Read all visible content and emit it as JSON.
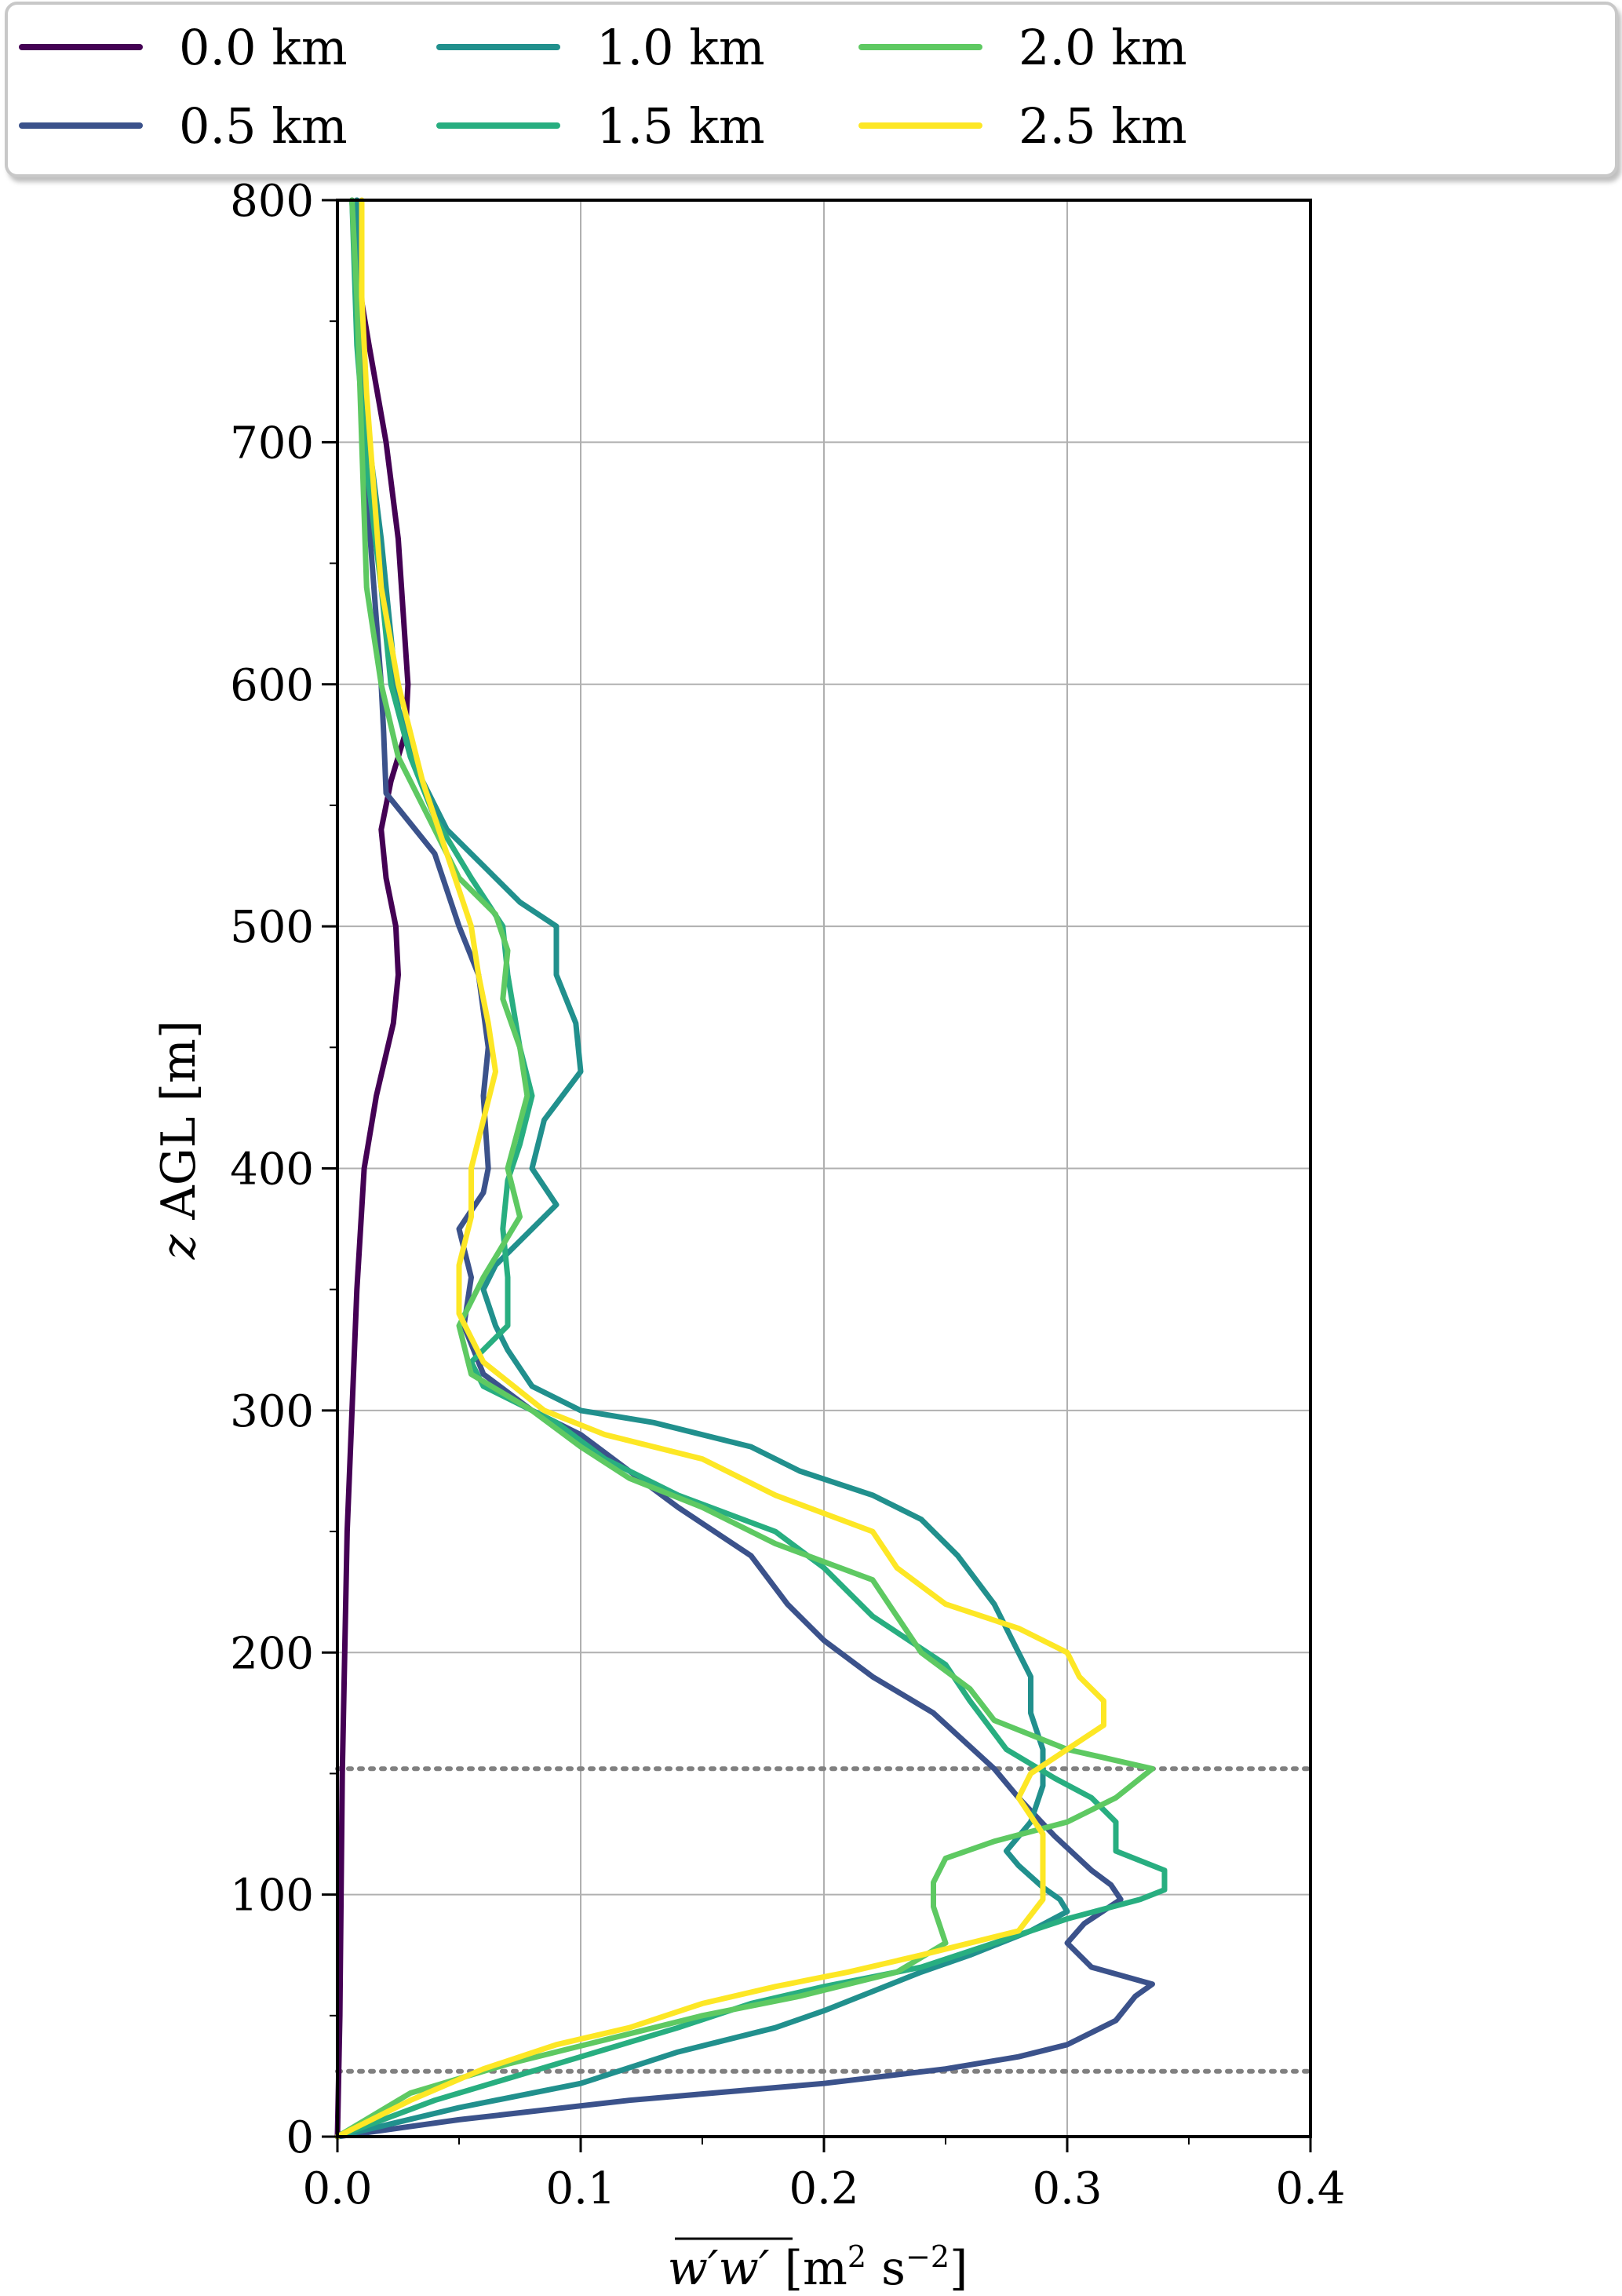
{
  "chart_data": {
    "type": "line",
    "title": "",
    "xlabel": "w′w′ [m² s⁻²]",
    "ylabel": "z AGL [m]",
    "xlim": [
      0.0,
      0.4
    ],
    "ylim": [
      0,
      800
    ],
    "xticks": [
      "0.0",
      "0.1",
      "0.2",
      "0.3",
      "0.4"
    ],
    "yticks": [
      "0",
      "100",
      "200",
      "300",
      "400",
      "500",
      "600",
      "700",
      "800"
    ],
    "grid": true,
    "legend_position": "top",
    "reference_lines": {
      "style": "dotted",
      "color": "#808080",
      "y": [
        152,
        27
      ]
    },
    "series": [
      {
        "name": "0.0 km",
        "color": "#440154",
        "points": [
          [
            0,
            0
          ],
          [
            0.001,
            50
          ],
          [
            0.002,
            150
          ],
          [
            0.004,
            250
          ],
          [
            0.006,
            300
          ],
          [
            0.008,
            350
          ],
          [
            0.011,
            400
          ],
          [
            0.016,
            430
          ],
          [
            0.023,
            460
          ],
          [
            0.025,
            480
          ],
          [
            0.024,
            500
          ],
          [
            0.02,
            520
          ],
          [
            0.018,
            540
          ],
          [
            0.022,
            560
          ],
          [
            0.028,
            580
          ],
          [
            0.029,
            600
          ],
          [
            0.027,
            630
          ],
          [
            0.025,
            660
          ],
          [
            0.02,
            700
          ],
          [
            0.013,
            740
          ],
          [
            0.008,
            770
          ],
          [
            0.006,
            800
          ]
        ]
      },
      {
        "name": "0.5 km",
        "color": "#3b528b",
        "points": [
          [
            0,
            0
          ],
          [
            0.05,
            7
          ],
          [
            0.12,
            15
          ],
          [
            0.2,
            22
          ],
          [
            0.25,
            28
          ],
          [
            0.28,
            33
          ],
          [
            0.3,
            38
          ],
          [
            0.32,
            48
          ],
          [
            0.328,
            58
          ],
          [
            0.335,
            63
          ],
          [
            0.31,
            70
          ],
          [
            0.3,
            80
          ],
          [
            0.307,
            88
          ],
          [
            0.322,
            98
          ],
          [
            0.318,
            104
          ],
          [
            0.31,
            110
          ],
          [
            0.295,
            124
          ],
          [
            0.28,
            140
          ],
          [
            0.27,
            152
          ],
          [
            0.245,
            175
          ],
          [
            0.22,
            190
          ],
          [
            0.2,
            205
          ],
          [
            0.185,
            220
          ],
          [
            0.17,
            240
          ],
          [
            0.14,
            260
          ],
          [
            0.12,
            275
          ],
          [
            0.1,
            290
          ],
          [
            0.08,
            300
          ],
          [
            0.06,
            315
          ],
          [
            0.052,
            335
          ],
          [
            0.055,
            355
          ],
          [
            0.05,
            375
          ],
          [
            0.06,
            390
          ],
          [
            0.062,
            400
          ],
          [
            0.06,
            430
          ],
          [
            0.062,
            450
          ],
          [
            0.058,
            480
          ],
          [
            0.05,
            500
          ],
          [
            0.04,
            530
          ],
          [
            0.02,
            555
          ],
          [
            0.019,
            580
          ],
          [
            0.018,
            600
          ],
          [
            0.015,
            640
          ],
          [
            0.012,
            680
          ],
          [
            0.01,
            720
          ],
          [
            0.009,
            760
          ],
          [
            0.008,
            800
          ]
        ]
      },
      {
        "name": "1.0 km",
        "color": "#21908d",
        "points": [
          [
            0,
            0
          ],
          [
            0.05,
            12
          ],
          [
            0.1,
            22
          ],
          [
            0.14,
            35
          ],
          [
            0.18,
            45
          ],
          [
            0.2,
            52
          ],
          [
            0.22,
            60
          ],
          [
            0.24,
            68
          ],
          [
            0.26,
            75
          ],
          [
            0.285,
            85
          ],
          [
            0.3,
            93
          ],
          [
            0.297,
            98
          ],
          [
            0.29,
            103
          ],
          [
            0.28,
            112
          ],
          [
            0.275,
            118
          ],
          [
            0.285,
            130
          ],
          [
            0.29,
            145
          ],
          [
            0.29,
            160
          ],
          [
            0.285,
            175
          ],
          [
            0.285,
            190
          ],
          [
            0.28,
            200
          ],
          [
            0.27,
            220
          ],
          [
            0.255,
            240
          ],
          [
            0.24,
            255
          ],
          [
            0.22,
            265
          ],
          [
            0.19,
            275
          ],
          [
            0.17,
            285
          ],
          [
            0.13,
            295
          ],
          [
            0.1,
            300
          ],
          [
            0.08,
            310
          ],
          [
            0.07,
            325
          ],
          [
            0.065,
            335
          ],
          [
            0.06,
            350
          ],
          [
            0.065,
            360
          ],
          [
            0.075,
            370
          ],
          [
            0.09,
            385
          ],
          [
            0.08,
            400
          ],
          [
            0.085,
            420
          ],
          [
            0.1,
            440
          ],
          [
            0.098,
            460
          ],
          [
            0.09,
            480
          ],
          [
            0.09,
            500
          ],
          [
            0.075,
            510
          ],
          [
            0.06,
            525
          ],
          [
            0.045,
            540
          ],
          [
            0.035,
            560
          ],
          [
            0.025,
            590
          ],
          [
            0.022,
            620
          ],
          [
            0.018,
            660
          ],
          [
            0.013,
            700
          ],
          [
            0.01,
            750
          ],
          [
            0.008,
            800
          ]
        ]
      },
      {
        "name": "1.5 km",
        "color": "#28ae80",
        "points": [
          [
            0,
            0
          ],
          [
            0.04,
            15
          ],
          [
            0.09,
            30
          ],
          [
            0.14,
            45
          ],
          [
            0.17,
            55
          ],
          [
            0.2,
            62
          ],
          [
            0.24,
            70
          ],
          [
            0.27,
            80
          ],
          [
            0.3,
            90
          ],
          [
            0.33,
            98
          ],
          [
            0.34,
            102
          ],
          [
            0.34,
            110
          ],
          [
            0.32,
            118
          ],
          [
            0.32,
            130
          ],
          [
            0.31,
            140
          ],
          [
            0.295,
            148
          ],
          [
            0.275,
            160
          ],
          [
            0.26,
            180
          ],
          [
            0.25,
            195
          ],
          [
            0.22,
            215
          ],
          [
            0.2,
            235
          ],
          [
            0.18,
            250
          ],
          [
            0.14,
            265
          ],
          [
            0.11,
            280
          ],
          [
            0.09,
            295
          ],
          [
            0.06,
            310
          ],
          [
            0.055,
            320
          ],
          [
            0.07,
            335
          ],
          [
            0.07,
            355
          ],
          [
            0.068,
            375
          ],
          [
            0.07,
            395
          ],
          [
            0.075,
            410
          ],
          [
            0.08,
            430
          ],
          [
            0.075,
            450
          ],
          [
            0.07,
            480
          ],
          [
            0.068,
            500
          ],
          [
            0.055,
            520
          ],
          [
            0.04,
            545
          ],
          [
            0.03,
            570
          ],
          [
            0.022,
            600
          ],
          [
            0.018,
            640
          ],
          [
            0.012,
            690
          ],
          [
            0.008,
            740
          ],
          [
            0.006,
            800
          ]
        ]
      },
      {
        "name": "2.0 km",
        "color": "#5ec962",
        "points": [
          [
            0,
            0
          ],
          [
            0.03,
            18
          ],
          [
            0.07,
            30
          ],
          [
            0.11,
            40
          ],
          [
            0.15,
            50
          ],
          [
            0.19,
            58
          ],
          [
            0.23,
            68
          ],
          [
            0.25,
            80
          ],
          [
            0.245,
            95
          ],
          [
            0.245,
            105
          ],
          [
            0.25,
            115
          ],
          [
            0.27,
            122
          ],
          [
            0.3,
            130
          ],
          [
            0.32,
            140
          ],
          [
            0.335,
            152
          ],
          [
            0.3,
            160
          ],
          [
            0.27,
            172
          ],
          [
            0.26,
            185
          ],
          [
            0.24,
            200
          ],
          [
            0.23,
            215
          ],
          [
            0.22,
            230
          ],
          [
            0.18,
            245
          ],
          [
            0.15,
            260
          ],
          [
            0.12,
            272
          ],
          [
            0.1,
            285
          ],
          [
            0.08,
            300
          ],
          [
            0.055,
            315
          ],
          [
            0.05,
            335
          ],
          [
            0.06,
            355
          ],
          [
            0.075,
            380
          ],
          [
            0.07,
            400
          ],
          [
            0.078,
            430
          ],
          [
            0.075,
            450
          ],
          [
            0.068,
            470
          ],
          [
            0.07,
            490
          ],
          [
            0.065,
            505
          ],
          [
            0.05,
            520
          ],
          [
            0.04,
            540
          ],
          [
            0.025,
            570
          ],
          [
            0.018,
            600
          ],
          [
            0.012,
            640
          ],
          [
            0.01,
            700
          ],
          [
            0.008,
            760
          ],
          [
            0.006,
            800
          ]
        ]
      },
      {
        "name": "2.5 km",
        "color": "#fde725",
        "points": [
          [
            0,
            0
          ],
          [
            0.03,
            15
          ],
          [
            0.06,
            28
          ],
          [
            0.09,
            38
          ],
          [
            0.12,
            45
          ],
          [
            0.15,
            55
          ],
          [
            0.18,
            62
          ],
          [
            0.21,
            68
          ],
          [
            0.24,
            75
          ],
          [
            0.28,
            85
          ],
          [
            0.29,
            98
          ],
          [
            0.29,
            110
          ],
          [
            0.29,
            125
          ],
          [
            0.28,
            140
          ],
          [
            0.285,
            150
          ],
          [
            0.3,
            160
          ],
          [
            0.315,
            170
          ],
          [
            0.315,
            180
          ],
          [
            0.305,
            190
          ],
          [
            0.3,
            200
          ],
          [
            0.28,
            210
          ],
          [
            0.25,
            220
          ],
          [
            0.23,
            235
          ],
          [
            0.22,
            250
          ],
          [
            0.18,
            265
          ],
          [
            0.15,
            280
          ],
          [
            0.11,
            290
          ],
          [
            0.085,
            300
          ],
          [
            0.06,
            320
          ],
          [
            0.05,
            340
          ],
          [
            0.05,
            360
          ],
          [
            0.055,
            380
          ],
          [
            0.055,
            400
          ],
          [
            0.06,
            420
          ],
          [
            0.065,
            440
          ],
          [
            0.062,
            460
          ],
          [
            0.058,
            480
          ],
          [
            0.055,
            500
          ],
          [
            0.045,
            530
          ],
          [
            0.035,
            560
          ],
          [
            0.025,
            600
          ],
          [
            0.018,
            640
          ],
          [
            0.015,
            680
          ],
          [
            0.012,
            720
          ],
          [
            0.01,
            760
          ],
          [
            0.01,
            800
          ]
        ]
      }
    ]
  }
}
